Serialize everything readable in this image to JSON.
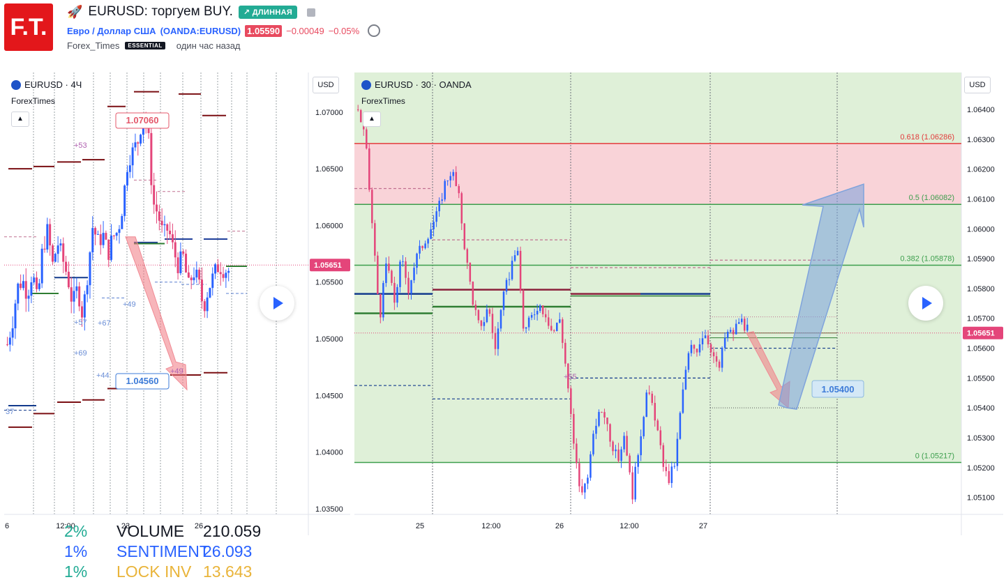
{
  "header": {
    "logo_text": "F.T.",
    "title": "EURUSD: торгуем BUY.",
    "badge": "↗ ДЛИННАЯ",
    "instrument": "Евро / Доллар США",
    "exchange": "(OANDA:EURUSD)",
    "last_price": "1.05590",
    "change": "−0.00049",
    "change_pct": "−0.05%",
    "author": "Forex_Times",
    "author_badge": "ESSENTIAL",
    "published": "один час назад"
  },
  "left_chart": {
    "symbol_line": "EURUSD · 4Ч",
    "indicator": "ForexTimes",
    "currency": "USD",
    "current_price": "1.05651",
    "annotations": {
      "upper": "1.07060",
      "lower": "1.04560"
    },
    "small_labels": [
      "+53",
      "+49",
      "+57",
      "+67",
      "+69",
      "+44",
      "+49",
      "37"
    ],
    "stats": [
      {
        "pct": "2%",
        "name": "VOLUME",
        "value": "210.059"
      },
      {
        "pct": "1%",
        "name": "SENTIMENT",
        "value": "26.093"
      },
      {
        "pct": "1%",
        "name": "LOCK INV",
        "value": "13.643"
      }
    ]
  },
  "right_chart": {
    "symbol_line": "EURUSD · 30 · OANDA",
    "indicator": "ForexTimes",
    "currency": "USD",
    "current_price": "1.05651",
    "target_label": "1.05400",
    "small_labels": [
      "+55"
    ],
    "fib_levels": [
      {
        "ratio": "0.618",
        "price": "1.06286",
        "color": "#e33b3b"
      },
      {
        "ratio": "0.5",
        "price": "1.06082",
        "color": "#3c9e4c"
      },
      {
        "ratio": "0.382",
        "price": "1.05878",
        "color": "#3c9e4c"
      },
      {
        "ratio": "0",
        "price": "1.05217",
        "color": "#3c9e4c"
      }
    ]
  },
  "chart_data": [
    {
      "type": "candlestick",
      "title": "EURUSD · 4Ч",
      "ylim": [
        1.0345,
        1.0735
      ],
      "yticks": [
        1.07,
        1.065,
        1.06,
        1.055,
        1.05,
        1.045,
        1.04,
        1.035
      ],
      "xticks": [
        "6",
        "12:00",
        "23",
        "26"
      ],
      "close_path": [
        1.0495,
        1.0515,
        1.0545,
        1.0552,
        1.054,
        1.056,
        1.053,
        1.058,
        1.0595,
        1.0565,
        1.0585,
        1.057,
        1.0555,
        1.053,
        1.0545,
        1.052,
        1.056,
        1.06,
        1.0585,
        1.0592,
        1.0575,
        1.059,
        1.0595,
        1.062,
        1.066,
        1.0665,
        1.0675,
        1.07,
        1.068,
        1.062,
        1.061,
        1.059,
        1.0598,
        1.0578,
        1.0565,
        1.0572,
        1.0545,
        1.056,
        1.055,
        1.0528,
        1.0545,
        1.0555,
        1.0565,
        1.0562,
        1.056
      ],
      "levels": {
        "upper_target": 1.0706,
        "lower_target": 1.0456
      }
    },
    {
      "type": "candlestick",
      "title": "EURUSD · 30 · OANDA",
      "ylim": [
        1.05043,
        1.06524
      ],
      "yticks": [
        1.064,
        1.063,
        1.062,
        1.061,
        1.06,
        1.059,
        1.058,
        1.057,
        1.056,
        1.055,
        1.054,
        1.053,
        1.052,
        1.051
      ],
      "xticks": [
        "25",
        "12:00",
        "26",
        "12:00",
        "27"
      ],
      "close_path": [
        1.064,
        1.063,
        1.06,
        1.057,
        1.059,
        1.0575,
        1.059,
        1.058,
        1.059,
        1.0595,
        1.06,
        1.0605,
        1.0615,
        1.062,
        1.061,
        1.059,
        1.0575,
        1.0565,
        1.0575,
        1.056,
        1.0575,
        1.0585,
        1.0595,
        1.0565,
        1.057,
        1.0575,
        1.0572,
        1.0565,
        1.057,
        1.055,
        1.0525,
        1.051,
        1.052,
        1.0535,
        1.054,
        1.053,
        1.0522,
        1.0532,
        1.051,
        1.0528,
        1.0545,
        1.054,
        1.0525,
        1.0515,
        1.0522,
        1.0545,
        1.056,
        1.056,
        1.0566,
        1.056,
        1.0552,
        1.0565,
        1.0565,
        1.057,
        1.0566
      ],
      "fibonacci": [
        {
          "ratio": 0.618,
          "price": 1.06286
        },
        {
          "ratio": 0.5,
          "price": 1.06082
        },
        {
          "ratio": 0.382,
          "price": 1.05878
        },
        {
          "ratio": 0,
          "price": 1.05217
        }
      ],
      "target": 1.054,
      "current": 1.05651
    }
  ],
  "colors": {
    "up": "#2962ff",
    "down": "#e4457a",
    "fib_red": "#e33b3b",
    "fib_green": "#3c9e4c",
    "zone_red": "#f9d3d8",
    "zone_green": "#dff0d8"
  }
}
